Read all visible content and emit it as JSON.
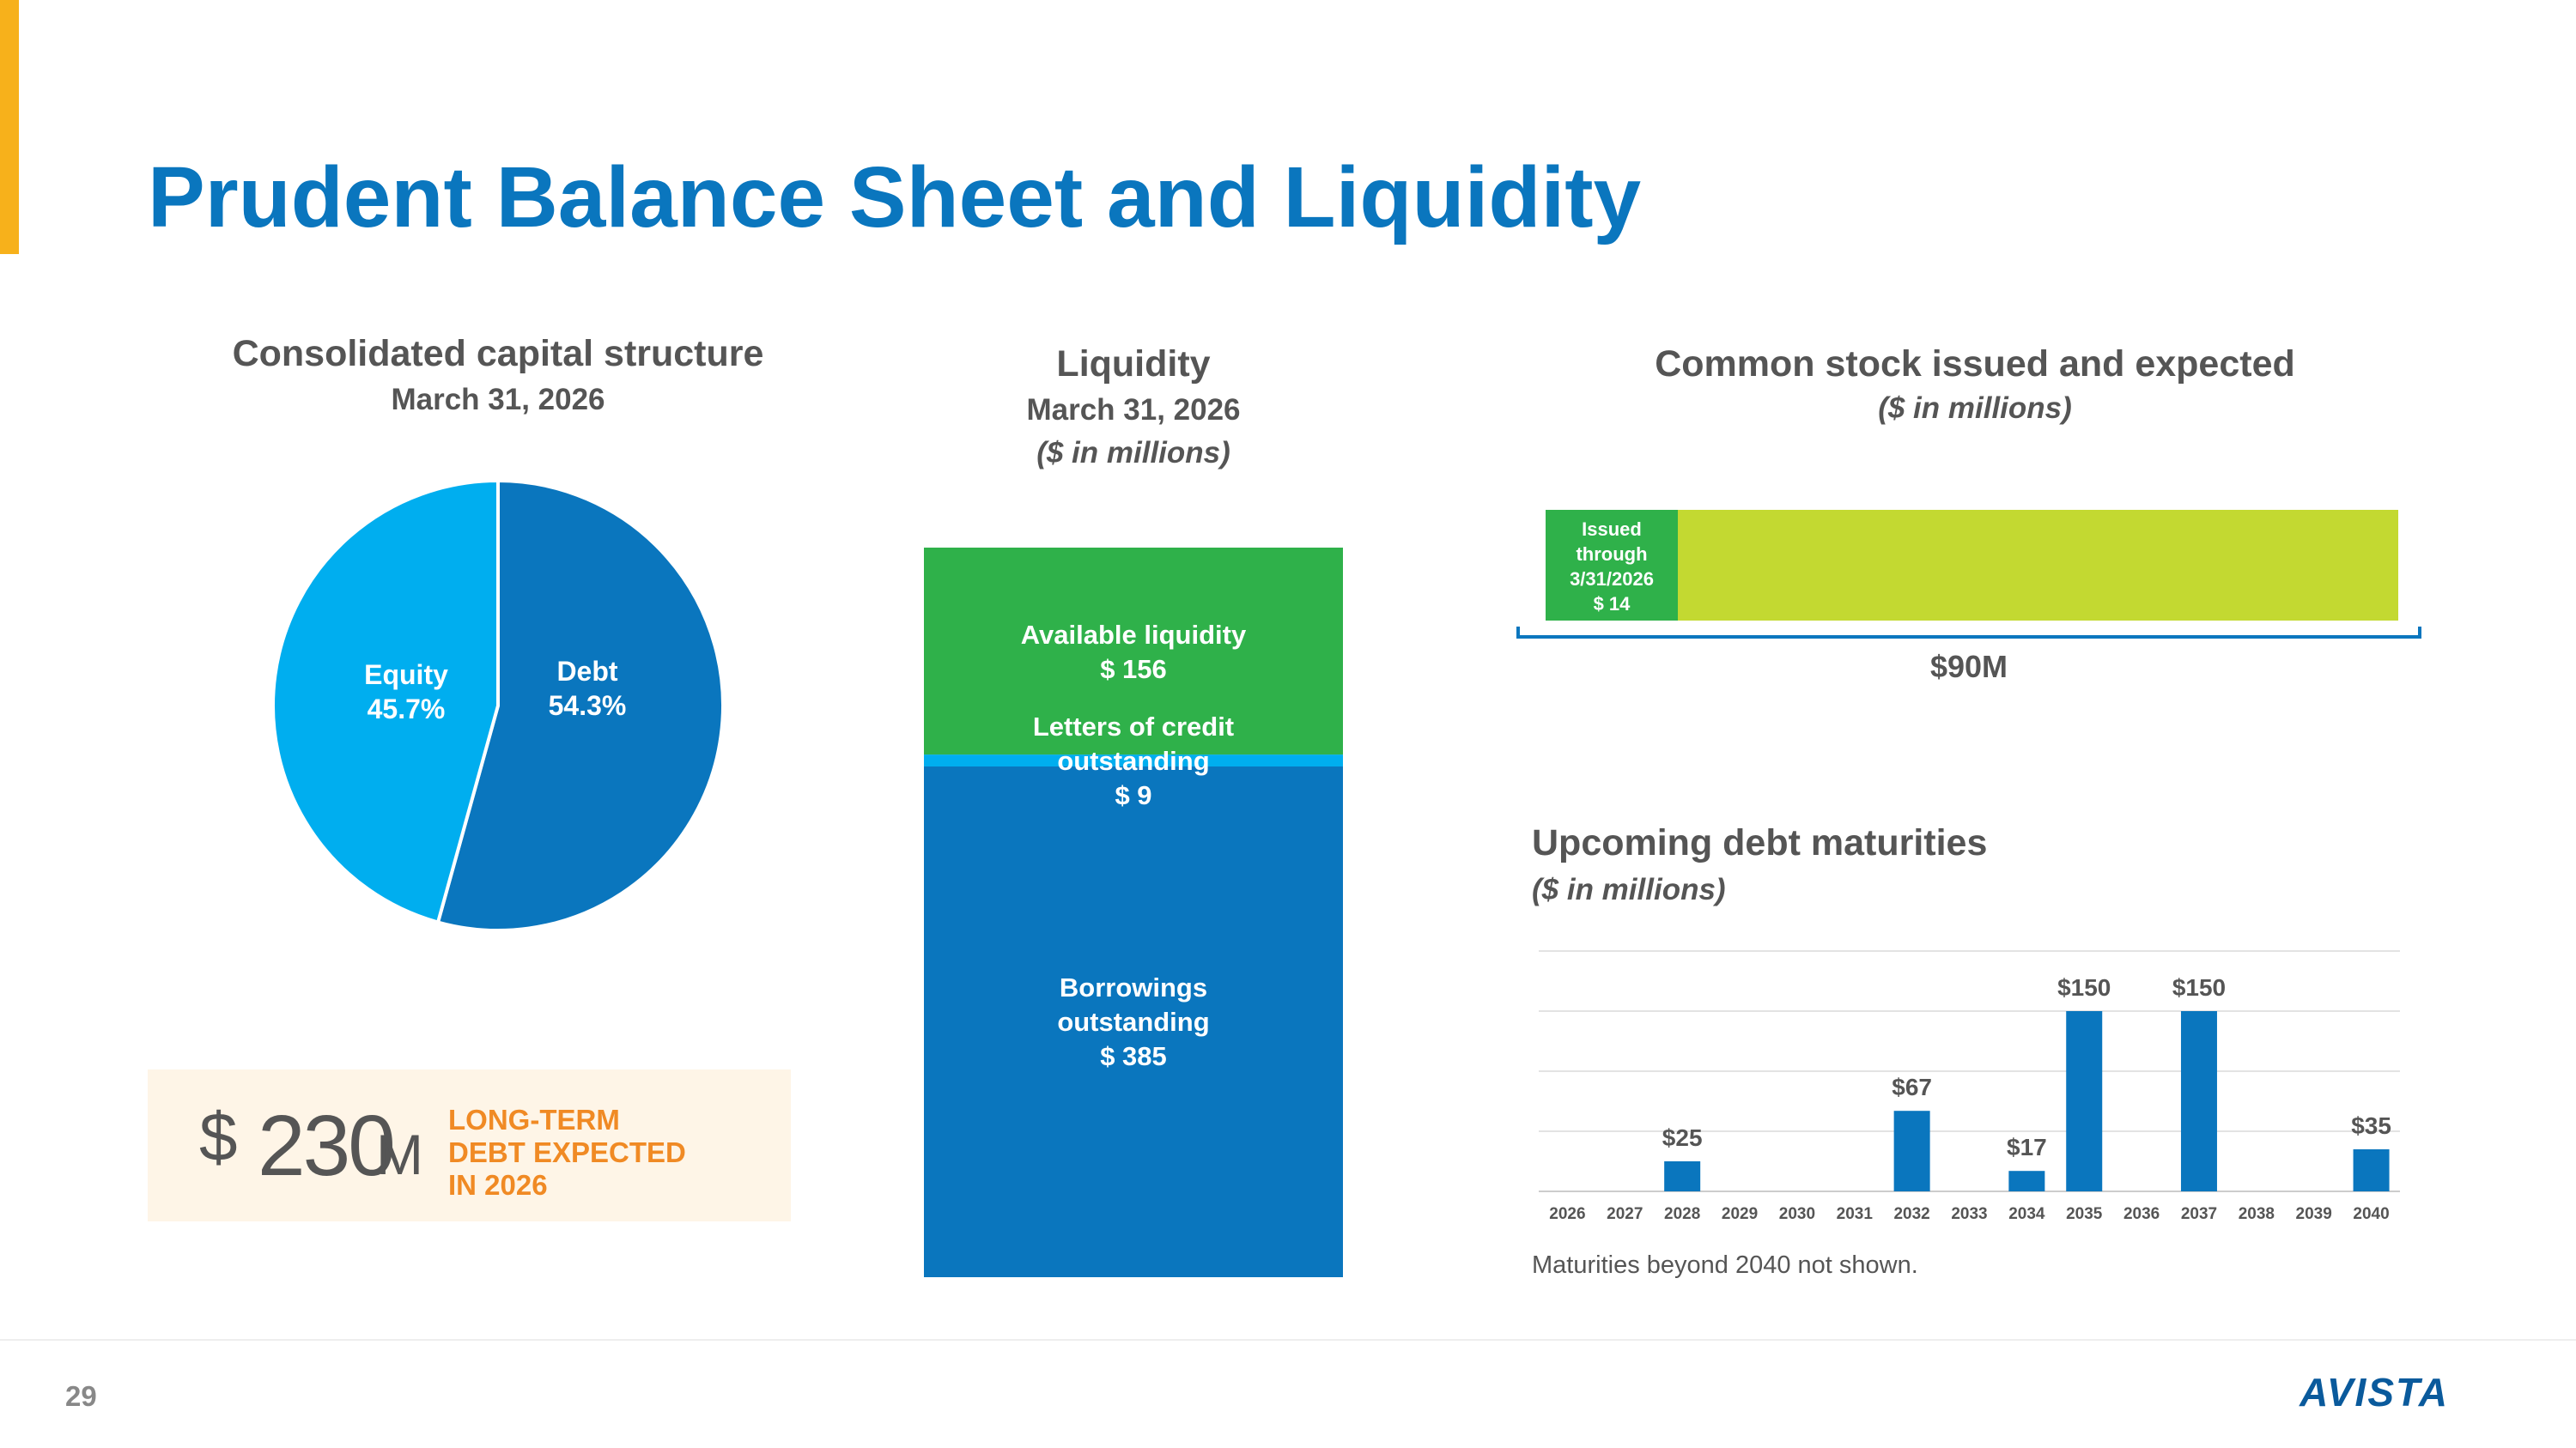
{
  "slide": {
    "title": "Prudent Balance Sheet and Liquidity",
    "page_number": "29",
    "accent_color": "#F7B11B",
    "title_color": "#0A76BE"
  },
  "capital_structure": {
    "title": "Consolidated capital structure",
    "date": "March 31, 2026",
    "debt_label": "Debt",
    "debt_value": "54.3%",
    "equity_label": "Equity",
    "equity_value": "45.7%"
  },
  "callout": {
    "dollar": "$",
    "amount": "230",
    "unit": "M",
    "line1": "LONG-TERM",
    "line2": "DEBT EXPECTED",
    "line3": "IN 2026"
  },
  "liquidity": {
    "title": "Liquidity",
    "date": "March 31, 2026",
    "units": "($ in millions)",
    "available_label": "Available liquidity",
    "available_value": "$ 156",
    "loc_label_1": "Letters of credit",
    "loc_label_2": "outstanding",
    "loc_value": "$ 9",
    "borrow_label_1": "Borrowings",
    "borrow_label_2": "outstanding",
    "borrow_value": "$ 385"
  },
  "common_stock": {
    "title": "Common stock issued and expected",
    "units": "($ in millions)",
    "issued_line1": "Issued",
    "issued_line2": "through",
    "issued_line3": "3/31/2026",
    "issued_value": "$ 14",
    "total_label": "$90M"
  },
  "debt_maturities": {
    "title": "Upcoming debt maturities",
    "units": "($ in millions)",
    "footnote": "Maturities beyond 2040 not shown."
  },
  "logo": {
    "text": "AVISTA",
    "name": "avista-logo"
  },
  "chart_data": [
    {
      "type": "pie",
      "title": "Consolidated capital structure",
      "subtitle": "March 31, 2026",
      "slices": [
        {
          "label": "Debt",
          "value": 54.3,
          "color": "#0A76BE"
        },
        {
          "label": "Equity",
          "value": 45.7,
          "color": "#00AEEF"
        }
      ]
    },
    {
      "type": "bar",
      "stacked": true,
      "title": "Liquidity",
      "subtitle": "March 31, 2026",
      "units": "($ in millions)",
      "segments": [
        {
          "label": "Borrowings outstanding",
          "value": 385,
          "color": "#0A76BE"
        },
        {
          "label": "Letters of credit outstanding",
          "value": 9,
          "color": "#00AEEF"
        },
        {
          "label": "Available liquidity",
          "value": 156,
          "color": "#2FB14A"
        }
      ]
    },
    {
      "type": "bar",
      "orientation": "horizontal",
      "stacked": true,
      "title": "Common stock issued and expected",
      "units": "($ in millions)",
      "total": 90,
      "segments": [
        {
          "label": "Issued through 3/31/2026",
          "value": 14,
          "color": "#2FB14A"
        },
        {
          "label": "",
          "value": 76,
          "color": "#C3D931"
        }
      ]
    },
    {
      "type": "bar",
      "title": "Upcoming debt maturities",
      "units": "($ in millions)",
      "categories": [
        "2026",
        "2027",
        "2028",
        "2029",
        "2030",
        "2031",
        "2032",
        "2033",
        "2034",
        "2035",
        "2036",
        "2037",
        "2038",
        "2039",
        "2040"
      ],
      "values": [
        0,
        0,
        25,
        0,
        0,
        0,
        67,
        0,
        17,
        150,
        0,
        150,
        0,
        0,
        35
      ],
      "data_labels": [
        "",
        "",
        "$25",
        "",
        "",
        "",
        "$67",
        "",
        "$17",
        "$150",
        "",
        "$150",
        "",
        "",
        "$35"
      ],
      "ylim": [
        0,
        200
      ],
      "grid": true,
      "bar_color": "#0A76BE"
    }
  ]
}
